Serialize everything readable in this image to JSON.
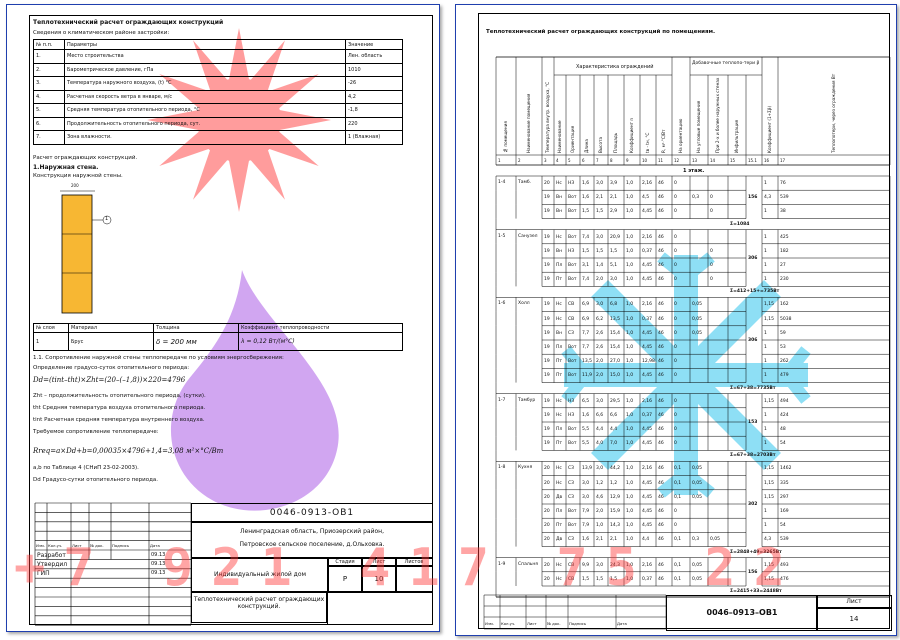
{
  "sheet1": {
    "title": "Теплотехнический расчет ограждающих конструкций",
    "climate_heading": "Сведения о климатическом районе застройки:",
    "climate_table": {
      "headers": [
        "№ п.п.",
        "Параметры",
        "Значение"
      ],
      "rows": [
        [
          "1.",
          "Место строительства",
          "Лен. область"
        ],
        [
          "2.",
          "Барометрическое давление, гПа",
          "1010"
        ],
        [
          "3.",
          "Температура наружного воздуха, (t) °C",
          "-26"
        ],
        [
          "4.",
          "Расчетная скорость ветра в январе, м/с",
          "4,2"
        ],
        [
          "5.",
          "Средняя температура отопительного периода, °C",
          "-1,8"
        ],
        [
          "6.",
          "Продолжительность отопительного периода, сут.",
          "220"
        ],
        [
          "7.",
          "Зона влажности.",
          "1 (Влажная)"
        ]
      ]
    },
    "calc_heading": "Расчет ограждающих конструкций.",
    "wall_heading": "1.Наружная стена.",
    "wall_construction": "Конструкция наружной стены.",
    "wall_dim": "200",
    "wall_marker": "1",
    "layer_table": {
      "headers": [
        "№ слоя",
        "Материал",
        "Толщина",
        "Коэффициент теплопроводности"
      ],
      "row": [
        "1",
        "Брус",
        "δ = 200 мм",
        "λ = 0,12 Вт/(м°С)"
      ]
    },
    "resistance_heading": "1.1. Сопротивление наружной стены теплопередаче по условиям энергосбережения:",
    "gsop_heading": "Определение градусо-суток отопительного периода:",
    "formula_d": "Dd=(tint–tht)×Zht=(20–(–1,8))×220=4796",
    "zht_desc": "Zht – продолжительность отопительного периода, (сутки).",
    "tht_desc": "tht Средняя температура воздуха отопительного периода.",
    "tint_desc": "tint Расчетная средняя температура внутреннего воздуха.",
    "required_heading": "Требуемое сопротивление теплопередаче:",
    "formula_r": "Rreq=a×Dd+b=0,00035×4796+1,4=3,08 м²×°С/Вт",
    "ab_desc": "a,b по Таблице 4 (СНиП 23-02-2003).",
    "dd_desc": "Dd Градусо-сутки отопительного периода.",
    "stamp": {
      "code": "0046-0913-ОВ1",
      "address_1": "Ленинградская область, Приозерский район,",
      "address_2": "Петровское сельское поселение, д.Ольховка.",
      "object": "Индивидуальный жилой дом",
      "stage_h": "Стадия",
      "sheet_h": "Лист",
      "sheets_h": "Листов",
      "stage": "Р",
      "sheet": "10",
      "sheets": "",
      "description": "Теплотехнический расчет ограждающих конструкций.",
      "col_headers": [
        "Изм.",
        "Кол.уч.",
        "Лист",
        "№ док.",
        "Подпись",
        "Дата"
      ],
      "roles": [
        {
          "role": "Разработ",
          "date": "09.13"
        },
        {
          "role": "Утвердил",
          "date": "09.13"
        },
        {
          "role": "ГИП",
          "date": "09.13"
        }
      ]
    }
  },
  "sheet2": {
    "title": "Теплотехнический расчет ограждающих конструкций по помещениям.",
    "group_headers": {
      "characteristics": "Характеристика ограждений",
      "additional": "Добавочные теплопо-тери β"
    },
    "col_headers": [
      "№ помещения",
      "Наименование помещения",
      "Температура внутр. воздуха, °C",
      "Наименование",
      "Ориентация",
      "Длина",
      "Высота",
      "Площадь",
      "Коэффициент n",
      "tв - tн, °C",
      "R, м²·°С/Вт",
      "На ориентацию",
      "На угловые помещения",
      "При 2-х и более наружных стенах",
      "Инфильтрация",
      "Коэффициент (1+Σβ)",
      "Теплопотери, через ограждения Вт"
    ],
    "col_numbers": [
      "1",
      "2",
      "3",
      "4",
      "5",
      "6",
      "7",
      "8",
      "9",
      "10",
      "11",
      "12",
      "13",
      "14",
      "15",
      "15.1",
      "16",
      "17"
    ],
    "floor_label": "1 этаж.",
    "rows": [
      {
        "room": "1-4",
        "name": "Тамб.",
        "cells": [
          "20",
          "Нс",
          "НЗ",
          "1,6",
          "3,0",
          "3,9",
          "1,0",
          "2,16",
          "46",
          "0",
          "",
          "",
          "1",
          "76"
        ]
      },
      {
        "room": "",
        "name": "",
        "cells": [
          "19",
          "Вн",
          "Вот",
          "1,6",
          "2,1",
          "2,1",
          "1,0",
          "4,5",
          "46",
          "0",
          "0,3",
          "0",
          "4,3",
          "539"
        ]
      },
      {
        "room": "",
        "name": "",
        "cells": [
          "19",
          "Вн",
          "Вот",
          "1,5",
          "1,5",
          "2,9",
          "1,0",
          "4,45",
          "46",
          "0",
          "",
          "0",
          "1",
          "38"
        ]
      },
      {
        "room": "1-5",
        "name": "Санузел",
        "cells": [
          "19",
          "Нс",
          "Вот",
          "7,4",
          "3,0",
          "20,9",
          "1,0",
          "2,16",
          "46",
          "0",
          "",
          "",
          "1",
          "425"
        ]
      },
      {
        "room": "",
        "name": "",
        "cells": [
          "19",
          "Вн",
          "НЗ",
          "1,5",
          "1,5",
          "1,5",
          "1,0",
          "0,37",
          "46",
          "0",
          "",
          "0",
          "1",
          "182"
        ]
      },
      {
        "room": "",
        "name": "",
        "cells": [
          "19",
          "Пл",
          "Вот",
          "3,1",
          "1,4",
          "5,1",
          "1,0",
          "4,45",
          "46",
          "0",
          "",
          "0",
          "1",
          "27"
        ]
      },
      {
        "room": "",
        "name": "",
        "cells": [
          "19",
          "Пт",
          "Вот",
          "7,4",
          "2,0",
          "3,0",
          "1,0",
          "4,45",
          "46",
          "0",
          "",
          "0",
          "1",
          "230"
        ]
      },
      {
        "room": "1-6",
        "name": "Холл",
        "cells": [
          "19",
          "Нс",
          "СВ",
          "6,9",
          "3,0",
          "6,8",
          "1,0",
          "2,16",
          "46",
          "0",
          "0,05",
          "",
          "1,15",
          "162"
        ]
      },
      {
        "room": "",
        "name": "",
        "cells": [
          "19",
          "Нс",
          "СВ",
          "6,9",
          "6,2",
          "13,5",
          "1,0",
          "0,37",
          "46",
          "0",
          "0,05",
          "",
          "1,15",
          "5038"
        ]
      },
      {
        "room": "",
        "name": "",
        "cells": [
          "19",
          "Вн",
          "СЗ",
          "7,7",
          "2,6",
          "15,4",
          "1,0",
          "4,45",
          "46",
          "0",
          "0,05",
          "",
          "1",
          "59"
        ]
      },
      {
        "room": "",
        "name": "",
        "cells": [
          "19",
          "Пл",
          "Вот",
          "7,7",
          "2,6",
          "15,4",
          "1,0",
          "4,45",
          "46",
          "0",
          "",
          "",
          "1",
          "53"
        ]
      },
      {
        "room": "",
        "name": "",
        "cells": [
          "19",
          "Пт",
          "Вот",
          "13,5",
          "2,0",
          "27,0",
          "1,0",
          "12,98",
          "46",
          "0",
          "",
          "",
          "1",
          "262"
        ]
      },
      {
        "room": "",
        "name": "",
        "cells": [
          "19",
          "Пт",
          "Вот",
          "11,9",
          "2,0",
          "15,0",
          "1,0",
          "4,45",
          "46",
          "0",
          "",
          "",
          "1",
          "479"
        ]
      },
      {
        "room": "1-7",
        "name": "Тамбур",
        "cells": [
          "19",
          "Нс",
          "НЗ",
          "6,5",
          "3,0",
          "29,5",
          "1,0",
          "2,16",
          "46",
          "0",
          "",
          "",
          "1,15",
          "494"
        ]
      },
      {
        "room": "",
        "name": "",
        "cells": [
          "19",
          "Нс",
          "НЗ",
          "1,6",
          "6,6",
          "6,6",
          "1,0",
          "0,37",
          "46",
          "0",
          "",
          "",
          "1",
          "424"
        ]
      },
      {
        "room": "",
        "name": "",
        "cells": [
          "19",
          "Пл",
          "Вот",
          "5,5",
          "4,4",
          "4,4",
          "1,0",
          "4,45",
          "46",
          "0",
          "",
          "",
          "1",
          "48"
        ]
      },
      {
        "room": "",
        "name": "",
        "cells": [
          "19",
          "Пт",
          "Вот",
          "5,5",
          "4,0",
          "7,0",
          "1,0",
          "4,45",
          "46",
          "0",
          "",
          "",
          "1",
          "54"
        ]
      },
      {
        "room": "1-8",
        "name": "Кухня",
        "cells": [
          "20",
          "Нс",
          "СЗ",
          "13,9",
          "3,0",
          "44,2",
          "1,0",
          "2,16",
          "46",
          "0,1",
          "0,05",
          "",
          "1,15",
          "1462"
        ]
      },
      {
        "room": "",
        "name": "",
        "cells": [
          "20",
          "Нс",
          "СЗ",
          "3,0",
          "1,2",
          "1,2",
          "1,0",
          "4,45",
          "46",
          "0,1",
          "0,05",
          "",
          "1,15",
          "335"
        ]
      },
      {
        "room": "",
        "name": "",
        "cells": [
          "20",
          "Дв",
          "СЗ",
          "3,0",
          "4,6",
          "12,9",
          "1,0",
          "4,45",
          "46",
          "0,1",
          "0,05",
          "",
          "1,15",
          "297"
        ]
      },
      {
        "room": "",
        "name": "",
        "cells": [
          "20",
          "Пл",
          "Вот",
          "7,9",
          "2,0",
          "15,9",
          "1,0",
          "4,45",
          "46",
          "0",
          "",
          "",
          "1",
          "169"
        ]
      },
      {
        "room": "",
        "name": "",
        "cells": [
          "20",
          "Пт",
          "Вот",
          "7,9",
          "1,0",
          "14,3",
          "1,0",
          "4,45",
          "46",
          "0",
          "",
          "",
          "1",
          "54"
        ]
      },
      {
        "room": "",
        "name": "",
        "cells": [
          "20",
          "Дв",
          "СЗ",
          "1,6",
          "2,1",
          "2,1",
          "1,0",
          "4,4",
          "46",
          "0,1",
          "0,3",
          "0,05",
          "4,3",
          "539"
        ]
      },
      {
        "room": "1-9",
        "name": "Спальня",
        "cells": [
          "20",
          "Нс",
          "СВ",
          "9,9",
          "3,0",
          "24,3",
          "1,0",
          "2,16",
          "46",
          "0,1",
          "0,05",
          "",
          "1,15",
          "493"
        ]
      },
      {
        "room": "",
        "name": "",
        "cells": [
          "20",
          "Нс",
          "СВ",
          "1,5",
          "1,5",
          "1,5",
          "1,0",
          "0,37",
          "46",
          "0,1",
          "0,05",
          "",
          "1,15",
          "476"
        ]
      }
    ],
    "sums": [
      {
        "after_row": 2,
        "text": "Σ=1084",
        "inf": "156"
      },
      {
        "after_row": 6,
        "text": "Σ=412+15+=735Вт",
        "inf": "306"
      },
      {
        "after_row": 12,
        "text": "Σ=67+38=7735Вт",
        "inf": "306"
      },
      {
        "after_row": 16,
        "text": "Σ=67+38=2703Вт",
        "inf": "153"
      },
      {
        "after_row": 22,
        "text": "Σ=2848+49=3265Вт",
        "inf": "302"
      },
      {
        "after_row": 24,
        "text": "Σ=2415+33=2448Вт",
        "inf": "156"
      }
    ],
    "stamp": {
      "code": "0046–0913–ОВ1",
      "sheet_h": "Лист",
      "sheet": "14",
      "col_headers": [
        "Изм.",
        "Кол.уч.",
        "Лист",
        "№ док.",
        "Подпись",
        "Дата"
      ]
    }
  },
  "watermark": {
    "phone": "+7 921 417 75 22",
    "colors": {
      "sun": "#ff4d4d",
      "drop": "#b36be8",
      "snowflake": "#33c6ee",
      "phone": "#ff3a3a",
      "wall_fill": "#f7b733"
    }
  }
}
